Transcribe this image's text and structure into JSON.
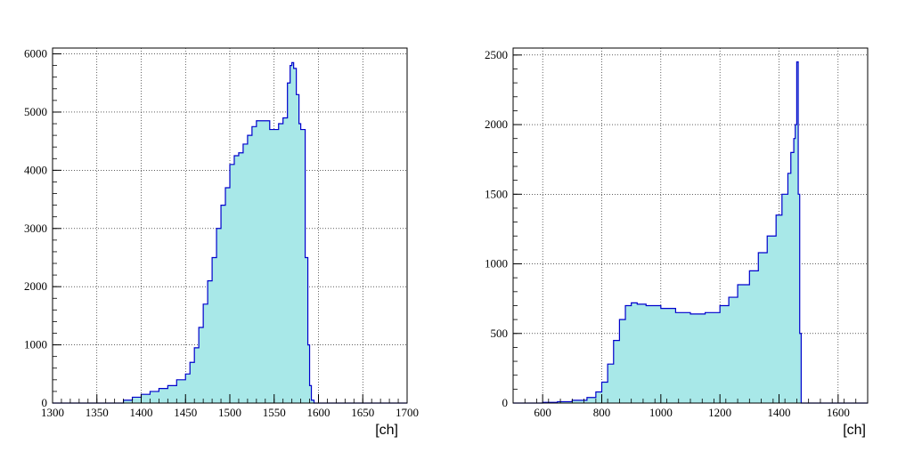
{
  "chart_data": [
    {
      "type": "histogram",
      "xlabel": "[ch]",
      "ylabel": "",
      "xlim": [
        1300,
        1700
      ],
      "ylim": [
        0,
        6100
      ],
      "grid": true,
      "fill_color": "#a8e8e8",
      "line_color": "#0000cc",
      "x_ticks": [
        1300,
        1350,
        1400,
        1450,
        1500,
        1550,
        1600,
        1650,
        1700
      ],
      "y_ticks": [
        0,
        1000,
        2000,
        3000,
        4000,
        5000,
        6000
      ],
      "x": [
        1300,
        1370,
        1380,
        1390,
        1400,
        1410,
        1420,
        1430,
        1440,
        1450,
        1455,
        1460,
        1465,
        1470,
        1475,
        1480,
        1485,
        1490,
        1495,
        1500,
        1505,
        1510,
        1515,
        1520,
        1525,
        1530,
        1535,
        1540,
        1545,
        1550,
        1555,
        1560,
        1565,
        1568,
        1570,
        1572,
        1575,
        1578,
        1580,
        1585,
        1588,
        1590,
        1592,
        1595,
        1700
      ],
      "values": [
        0,
        0,
        50,
        100,
        150,
        200,
        250,
        300,
        400,
        500,
        700,
        950,
        1300,
        1700,
        2100,
        2500,
        3000,
        3400,
        3700,
        4100,
        4250,
        4300,
        4450,
        4600,
        4750,
        4850,
        4850,
        4850,
        4700,
        4700,
        4800,
        4900,
        5500,
        5800,
        5850,
        5750,
        5300,
        4800,
        4700,
        2500,
        1000,
        300,
        50,
        0,
        0
      ]
    },
    {
      "type": "histogram",
      "xlabel": "[ch]",
      "ylabel": "",
      "xlim": [
        500,
        1700
      ],
      "ylim": [
        0,
        2550
      ],
      "grid": true,
      "fill_color": "#a8e8e8",
      "line_color": "#0000cc",
      "x_ticks": [
        600,
        800,
        1000,
        1200,
        1400,
        1600
      ],
      "y_ticks": [
        0,
        500,
        1000,
        1500,
        2000,
        2500
      ],
      "x": [
        500,
        600,
        650,
        700,
        750,
        780,
        800,
        820,
        840,
        860,
        880,
        900,
        920,
        950,
        1000,
        1050,
        1100,
        1150,
        1200,
        1230,
        1260,
        1300,
        1330,
        1360,
        1390,
        1410,
        1430,
        1440,
        1450,
        1455,
        1460,
        1465,
        1470,
        1475,
        1700
      ],
      "values": [
        0,
        5,
        10,
        20,
        40,
        80,
        150,
        280,
        450,
        600,
        700,
        720,
        710,
        700,
        680,
        650,
        640,
        650,
        700,
        760,
        850,
        950,
        1080,
        1200,
        1350,
        1500,
        1650,
        1800,
        1900,
        2000,
        2450,
        1500,
        500,
        0,
        0
      ]
    }
  ]
}
